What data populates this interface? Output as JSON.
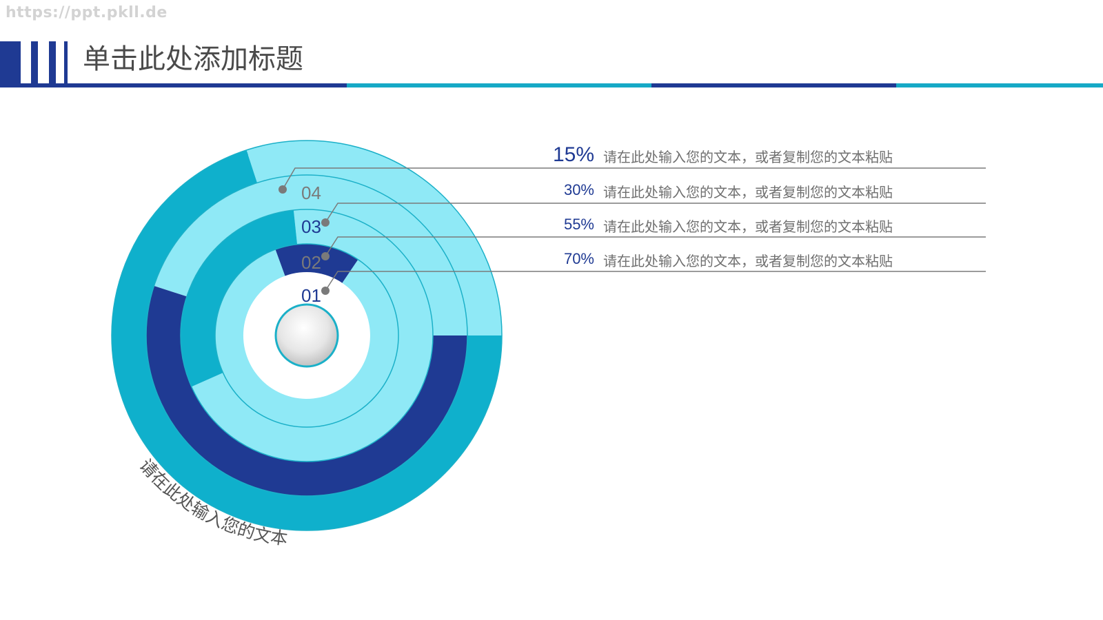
{
  "watermark": "https://ppt.pkll.de",
  "page_title": "单击此处添加标题",
  "colors": {
    "navy": "#1f3a93",
    "teal": "#0fb0cc",
    "light": "#8fe9f6",
    "ring_border": "#1bb0c8",
    "line": "#7a7a7a"
  },
  "chart_data": {
    "type": "pie",
    "rings": [
      {
        "label": "01",
        "value": 15,
        "value_label": "15%",
        "description": "请在此处输入您的文本，或者复制您的文本粘贴"
      },
      {
        "label": "02",
        "value": 30,
        "value_label": "30%",
        "description": "请在此处输入您的文本，或者复制您的文本粘贴"
      },
      {
        "label": "03",
        "value": 55,
        "value_label": "55%",
        "description": "请在此处输入您的文本，或者复制您的文本粘贴"
      },
      {
        "label": "04",
        "value": 70,
        "value_label": "70%",
        "description": "请在此处输入您的文本，或者复制您的文本粘贴"
      }
    ],
    "rings_display_order": [
      "04",
      "03",
      "02",
      "01"
    ],
    "curved_caption": "请在此处输入您的文本"
  }
}
